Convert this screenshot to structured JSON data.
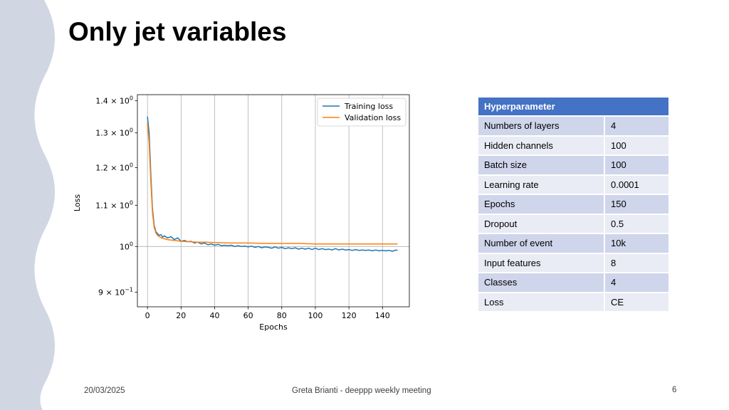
{
  "slide": {
    "title": "Only jet variables",
    "footer_date": "20/03/2025",
    "footer_text": "Greta Brianti - deeppp weekly meeting",
    "page_number": "6"
  },
  "colors": {
    "wave": "#d0d6e2",
    "table_header": "#4472c4",
    "row_odd": "#cfd5ea",
    "row_even": "#e9ebf5",
    "training": "#1f77b4",
    "validation": "#ff7f0e"
  },
  "table": {
    "header": "Hyperparameter",
    "rows": [
      {
        "name": "Numbers of layers",
        "value": "4"
      },
      {
        "name": "Hidden channels",
        "value": "100"
      },
      {
        "name": "Batch size",
        "value": "100"
      },
      {
        "name": "Learning rate",
        "value": "0.0001"
      },
      {
        "name": "Epochs",
        "value": "150"
      },
      {
        "name": "Dropout",
        "value": "0.5"
      },
      {
        "name": "Number of event",
        "value": "10k"
      },
      {
        "name": "Input features",
        "value": "8"
      },
      {
        "name": "Classes",
        "value": "4"
      },
      {
        "name": "Loss",
        "value": "CE"
      }
    ]
  },
  "chart_data": {
    "type": "line",
    "title": "",
    "xlabel": "Epochs",
    "ylabel": "Loss",
    "yscale": "log",
    "xlim": [
      -6,
      156
    ],
    "ylim": [
      0.87,
      1.42
    ],
    "grid": "vertical",
    "legend": "top-right",
    "x_ticks": [
      0,
      20,
      40,
      60,
      80,
      100,
      120,
      140
    ],
    "y_ticks": [
      {
        "value": 0.9,
        "mant": "9 × 10",
        "exp": "−1"
      },
      {
        "value": 1.0,
        "mant": "10",
        "exp": "0"
      },
      {
        "value": 1.1,
        "mant": "1.1 × 10",
        "exp": "0"
      },
      {
        "value": 1.2,
        "mant": "1.2 × 10",
        "exp": "0"
      },
      {
        "value": 1.3,
        "mant": "1.3 × 10",
        "exp": "0"
      },
      {
        "value": 1.4,
        "mant": "1.4 × 10",
        "exp": "0"
      }
    ],
    "series": [
      {
        "name": "Training loss",
        "x": [
          0,
          1,
          2,
          3,
          4,
          5,
          6,
          7,
          8,
          9,
          10,
          12,
          14,
          16,
          18,
          20,
          22,
          24,
          26,
          28,
          30,
          32,
          34,
          36,
          38,
          40,
          42,
          44,
          46,
          48,
          50,
          52,
          54,
          56,
          58,
          60,
          62,
          64,
          66,
          68,
          70,
          72,
          74,
          76,
          78,
          80,
          82,
          84,
          86,
          88,
          90,
          92,
          94,
          96,
          98,
          100,
          102,
          104,
          106,
          108,
          110,
          112,
          114,
          116,
          118,
          120,
          122,
          124,
          126,
          128,
          130,
          132,
          134,
          136,
          138,
          140,
          142,
          144,
          146,
          148,
          149
        ],
        "values": [
          1.35,
          1.3,
          1.18,
          1.09,
          1.05,
          1.035,
          1.03,
          1.026,
          1.028,
          1.022,
          1.025,
          1.02,
          1.023,
          1.016,
          1.02,
          1.012,
          1.014,
          1.011,
          1.012,
          1.008,
          1.01,
          1.006,
          1.008,
          1.004,
          1.006,
          1.003,
          1.005,
          1.002,
          1.003,
          1.002,
          1.003,
          1.0,
          1.002,
          1.0,
          1.001,
          0.999,
          1.001,
          0.998,
          1.0,
          0.997,
          0.999,
          0.998,
          0.996,
          0.999,
          0.996,
          0.998,
          0.995,
          0.997,
          0.995,
          0.997,
          0.994,
          0.996,
          0.994,
          0.996,
          0.993,
          0.996,
          0.993,
          0.995,
          0.993,
          0.994,
          0.992,
          0.995,
          0.992,
          0.994,
          0.992,
          0.993,
          0.991,
          0.993,
          0.991,
          0.992,
          0.991,
          0.992,
          0.99,
          0.992,
          0.99,
          0.991,
          0.99,
          0.991,
          0.989,
          0.992,
          0.991
        ]
      },
      {
        "name": "Validation loss",
        "x": [
          0,
          1,
          2,
          3,
          4,
          5,
          6,
          7,
          8,
          9,
          10,
          12,
          14,
          16,
          18,
          20,
          25,
          30,
          35,
          40,
          50,
          60,
          70,
          80,
          90,
          100,
          110,
          120,
          130,
          140,
          149
        ],
        "values": [
          1.33,
          1.27,
          1.16,
          1.08,
          1.045,
          1.032,
          1.026,
          1.023,
          1.021,
          1.019,
          1.018,
          1.016,
          1.015,
          1.014,
          1.013,
          1.012,
          1.011,
          1.01,
          1.01,
          1.009,
          1.008,
          1.008,
          1.007,
          1.007,
          1.007,
          1.006,
          1.006,
          1.006,
          1.006,
          1.006,
          1.006
        ]
      }
    ]
  }
}
